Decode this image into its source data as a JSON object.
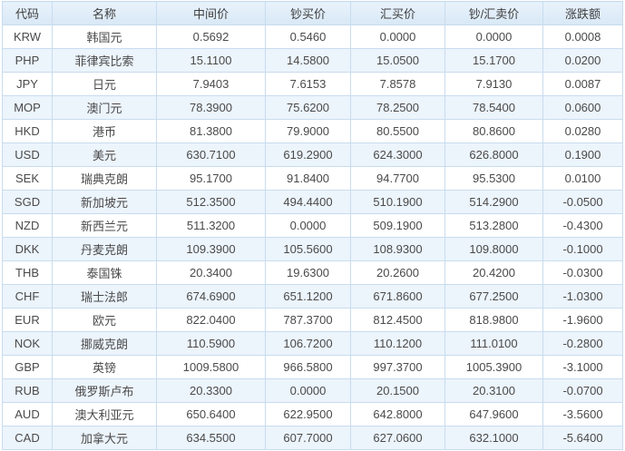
{
  "colors": {
    "up_change": "#e62e2e",
    "down_change": "#2f9e2f",
    "header_bg": "#dcebf8",
    "stripe_bg": "#ecf4fc",
    "border": "#c8dcee",
    "text": "#4a4a4a"
  },
  "table": {
    "columns": [
      {
        "key": "code",
        "label": "代码"
      },
      {
        "key": "name",
        "label": "名称"
      },
      {
        "key": "mid",
        "label": "中间价"
      },
      {
        "key": "cash_buy",
        "label": "钞买价"
      },
      {
        "key": "fx_buy",
        "label": "汇买价"
      },
      {
        "key": "sell",
        "label": "钞/汇卖价"
      },
      {
        "key": "change",
        "label": "涨跌额"
      }
    ],
    "rows": [
      {
        "code": "KRW",
        "name": "韩国元",
        "mid": "0.5692",
        "cash_buy": "0.5460",
        "fx_buy": "0.0000",
        "sell": "0.0000",
        "change": "0.0008"
      },
      {
        "code": "PHP",
        "name": "菲律宾比索",
        "mid": "15.1100",
        "cash_buy": "14.5800",
        "fx_buy": "15.0500",
        "sell": "15.1700",
        "change": "0.0200"
      },
      {
        "code": "JPY",
        "name": "日元",
        "mid": "7.9403",
        "cash_buy": "7.6153",
        "fx_buy": "7.8578",
        "sell": "7.9130",
        "change": "0.0087"
      },
      {
        "code": "MOP",
        "name": "澳门元",
        "mid": "78.3900",
        "cash_buy": "75.6200",
        "fx_buy": "78.2500",
        "sell": "78.5400",
        "change": "0.0600"
      },
      {
        "code": "HKD",
        "name": "港币",
        "mid": "81.3800",
        "cash_buy": "79.9000",
        "fx_buy": "80.5500",
        "sell": "80.8600",
        "change": "0.0280"
      },
      {
        "code": "USD",
        "name": "美元",
        "mid": "630.7100",
        "cash_buy": "619.2900",
        "fx_buy": "624.3000",
        "sell": "626.8000",
        "change": "0.1900"
      },
      {
        "code": "SEK",
        "name": "瑞典克朗",
        "mid": "95.1700",
        "cash_buy": "91.8400",
        "fx_buy": "94.7700",
        "sell": "95.5300",
        "change": "0.0100"
      },
      {
        "code": "SGD",
        "name": "新加坡元",
        "mid": "512.3500",
        "cash_buy": "494.4400",
        "fx_buy": "510.1900",
        "sell": "514.2900",
        "change": "-0.0500"
      },
      {
        "code": "NZD",
        "name": "新西兰元",
        "mid": "511.3200",
        "cash_buy": "0.0000",
        "fx_buy": "509.1900",
        "sell": "513.2800",
        "change": "-0.4300"
      },
      {
        "code": "DKK",
        "name": "丹麦克朗",
        "mid": "109.3900",
        "cash_buy": "105.5600",
        "fx_buy": "108.9300",
        "sell": "109.8000",
        "change": "-0.1000"
      },
      {
        "code": "THB",
        "name": "泰国铢",
        "mid": "20.3400",
        "cash_buy": "19.6300",
        "fx_buy": "20.2600",
        "sell": "20.4200",
        "change": "-0.0300"
      },
      {
        "code": "CHF",
        "name": "瑞士法郎",
        "mid": "674.6900",
        "cash_buy": "651.1200",
        "fx_buy": "671.8600",
        "sell": "677.2500",
        "change": "-1.0300"
      },
      {
        "code": "EUR",
        "name": "欧元",
        "mid": "822.0400",
        "cash_buy": "787.3700",
        "fx_buy": "812.4500",
        "sell": "818.9800",
        "change": "-1.9600"
      },
      {
        "code": "NOK",
        "name": "挪威克朗",
        "mid": "110.5900",
        "cash_buy": "106.7200",
        "fx_buy": "110.1200",
        "sell": "111.0100",
        "change": "-0.2800"
      },
      {
        "code": "GBP",
        "name": "英镑",
        "mid": "1009.5800",
        "cash_buy": "966.5800",
        "fx_buy": "997.3700",
        "sell": "1005.3900",
        "change": "-3.1000"
      },
      {
        "code": "RUB",
        "name": "俄罗斯卢布",
        "mid": "20.3300",
        "cash_buy": "0.0000",
        "fx_buy": "20.1500",
        "sell": "20.3100",
        "change": "-0.0700"
      },
      {
        "code": "AUD",
        "name": "澳大利亚元",
        "mid": "650.6400",
        "cash_buy": "622.9500",
        "fx_buy": "642.8000",
        "sell": "647.9600",
        "change": "-3.5600"
      },
      {
        "code": "CAD",
        "name": "加拿大元",
        "mid": "634.5500",
        "cash_buy": "607.7000",
        "fx_buy": "627.0600",
        "sell": "632.1000",
        "change": "-5.6400"
      }
    ]
  }
}
